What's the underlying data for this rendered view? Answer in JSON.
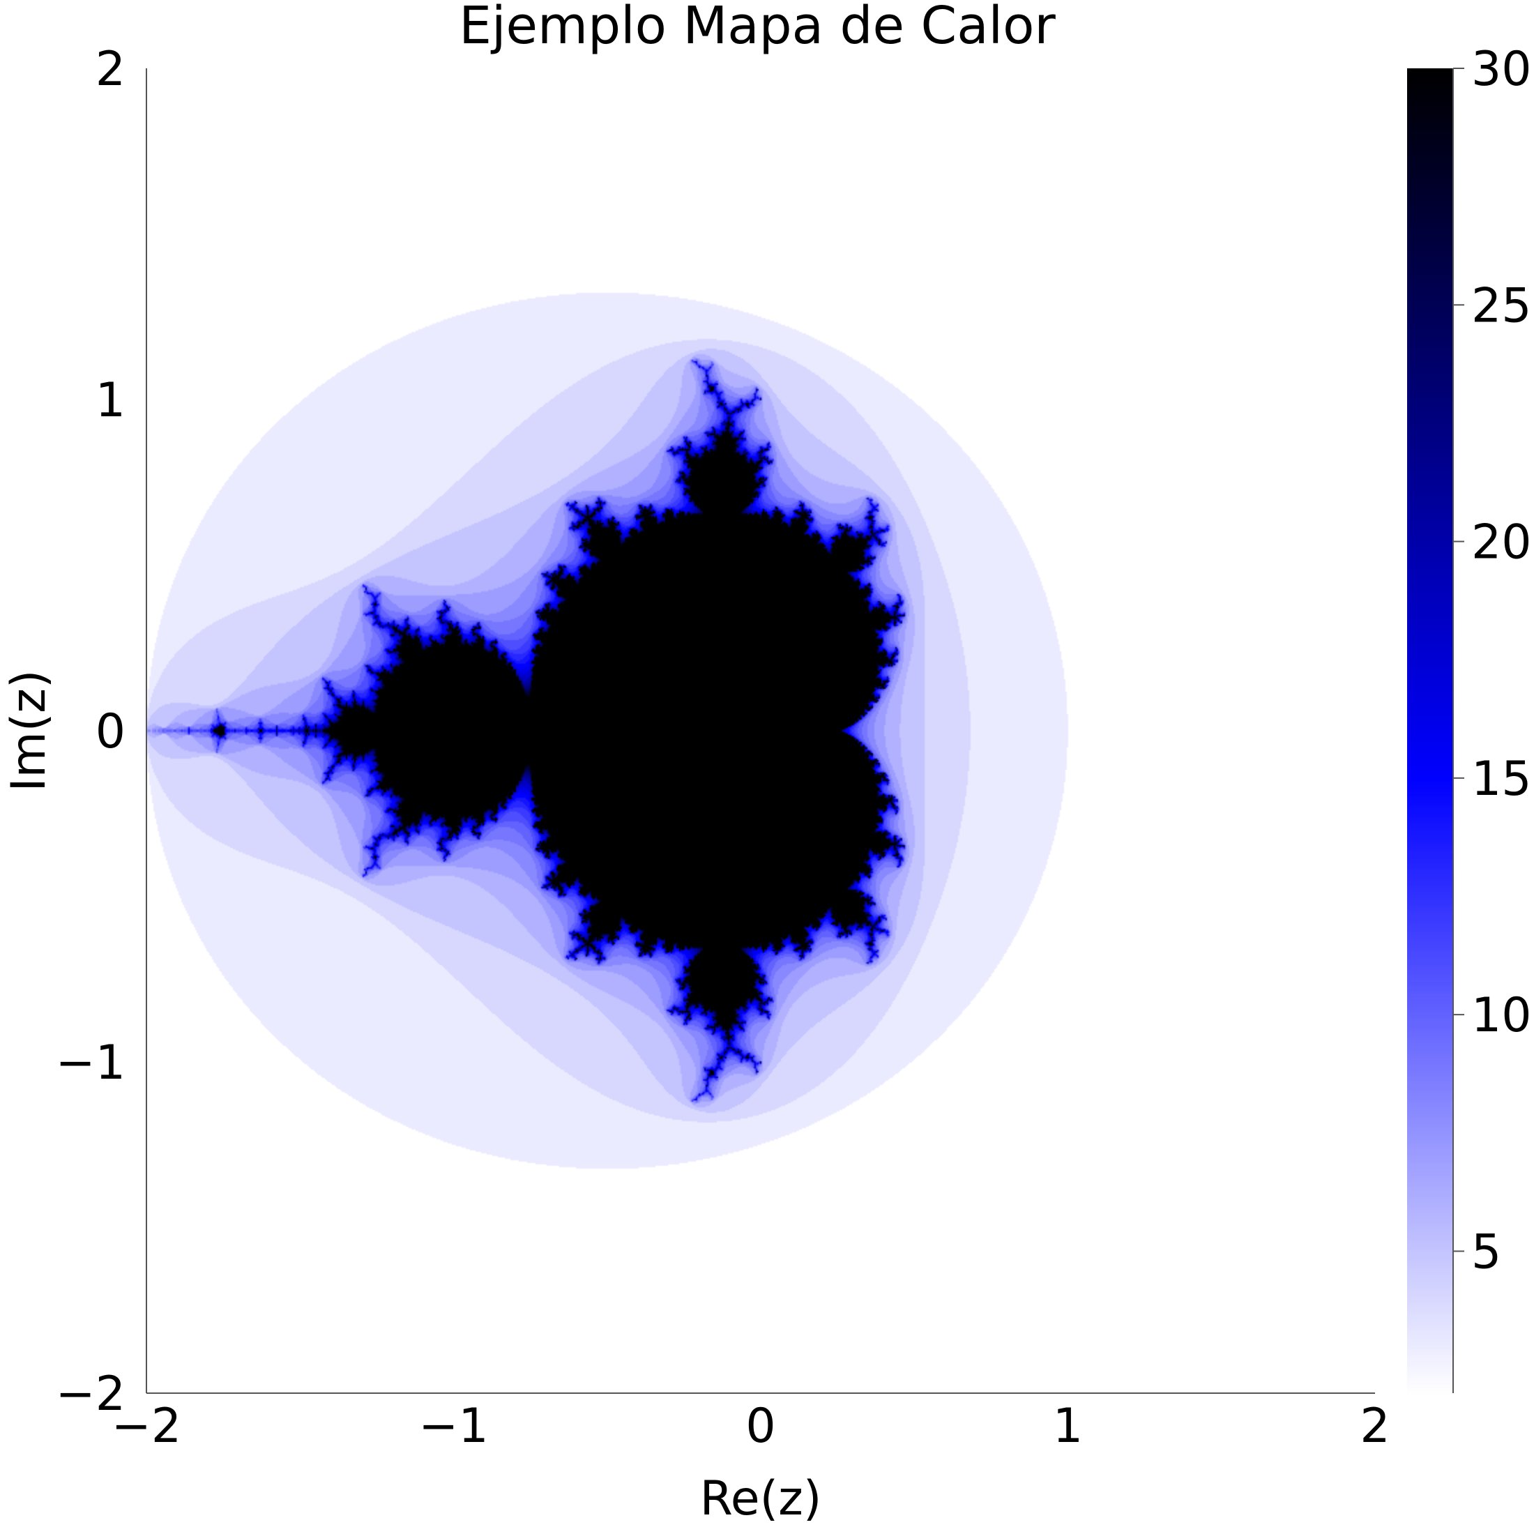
{
  "chart_data": {
    "type": "heatmap",
    "title": "Ejemplo Mapa de \u0002Calor",
    "xlabel": "Re(z)",
    "ylabel": "Im(z)",
    "xlim": [
      -2,
      2
    ],
    "ylim": [
      -2,
      2
    ],
    "x_ticks": [
      -2,
      -1,
      0,
      1,
      2
    ],
    "y_ticks": [
      -2,
      -1,
      0,
      1,
      2
    ],
    "x_tick_labels": [
      "−2",
      "−1",
      "0",
      "1",
      "2"
    ],
    "y_tick_labels": [
      "−2",
      "−1",
      "0",
      "1",
      "2"
    ],
    "grid": false,
    "function": "Mandelbrot iteration count (escape radius 2) for z0 = 0, c = x + iy",
    "max_iterations": 30,
    "colorbar": {
      "range": [
        2,
        30
      ],
      "ticks": [
        5,
        10,
        15,
        20,
        25,
        30
      ],
      "tick_labels": [
        "5",
        "10",
        "15",
        "20",
        "25",
        "30"
      ],
      "colormap": [
        {
          "value": 2,
          "color": "#ffffff"
        },
        {
          "value": 15,
          "color": "#0000ff"
        },
        {
          "value": 30,
          "color": "#000000"
        }
      ]
    }
  }
}
